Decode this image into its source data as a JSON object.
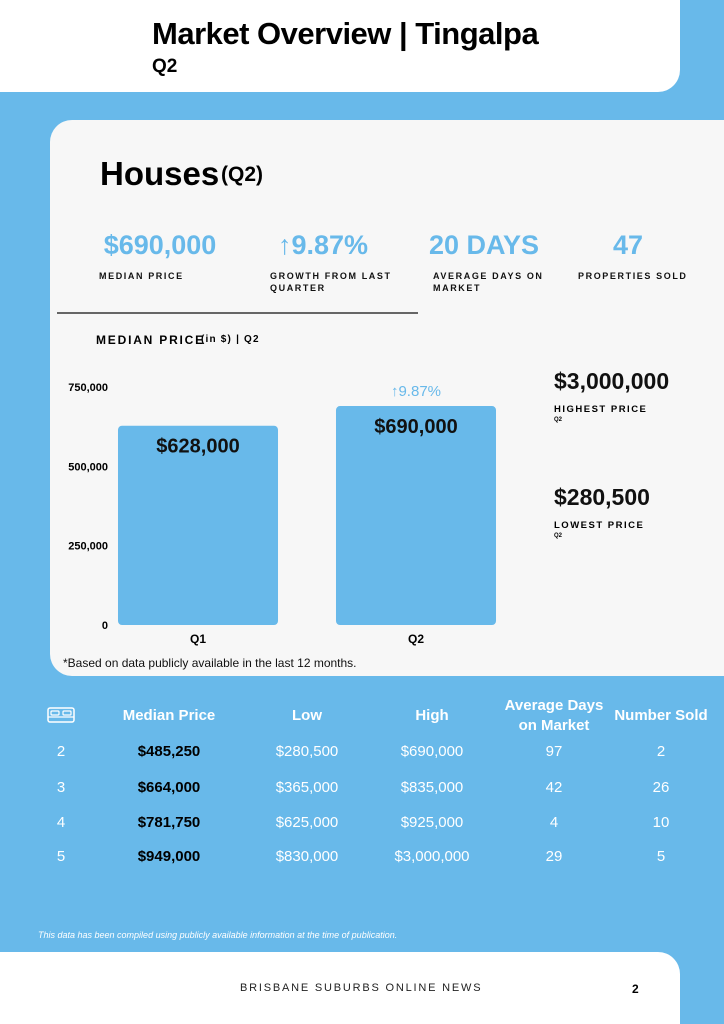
{
  "header": {
    "title": "Market Overview | Tingalpa",
    "subtitle": "Q2"
  },
  "section": {
    "title": "Houses",
    "period": "(Q2)"
  },
  "stats": [
    {
      "value": "$690,000",
      "label": "MEDIAN PRICE"
    },
    {
      "value": "↑9.87%",
      "label": "GROWTH FROM LAST QUARTER"
    },
    {
      "value": "20 DAYS",
      "label": "AVERAGE DAYS ON MARKET"
    },
    {
      "value": "47",
      "label": "PROPERTIES SOLD"
    }
  ],
  "chart_data": {
    "type": "bar",
    "title": "MEDIAN PRICE",
    "subtitle": "(in $) | Q2",
    "categories": [
      "Q1",
      "Q2"
    ],
    "values": [
      628000,
      690000
    ],
    "value_labels": [
      "$628,000",
      "$690,000"
    ],
    "color": "#68b9ea",
    "ylim": [
      0,
      750000
    ],
    "yticks": [
      0,
      {
        "value": 250000,
        "label": "250,000"
      },
      {
        "value": 500000,
        "label": "500,000"
      },
      {
        "value": 750000,
        "label": "750,000"
      }
    ],
    "grid": false,
    "annotation": "↑9.87%"
  },
  "chart_note": "*Based on data publicly available in the last 12 months.",
  "extremes": [
    {
      "value": "$3,000,000",
      "label": "HIGHEST PRICE",
      "period": "Q2"
    },
    {
      "value": "$280,500",
      "label": "LOWEST PRICE",
      "period": "Q2"
    }
  ],
  "table": {
    "header": [
      "Median Price",
      "Low",
      "High",
      "Average Days on Market",
      "Number Sold"
    ],
    "rows": [
      [
        "2",
        "$485,250",
        "$280,500",
        "$690,000",
        "97",
        "2"
      ],
      [
        "3",
        "$664,000",
        "$365,000",
        "$835,000",
        "42",
        "26"
      ],
      [
        "4",
        "$781,750",
        "$625,000",
        "$925,000",
        "4",
        "10"
      ],
      [
        "5",
        "$949,000",
        "$830,000",
        "$3,000,000",
        "29",
        "5"
      ]
    ]
  },
  "disclaimer": "This data has been compiled using publicly available information at the time of publication.",
  "footer": {
    "publication": "BRISBANE SUBURBS ONLINE NEWS",
    "page": "2"
  }
}
